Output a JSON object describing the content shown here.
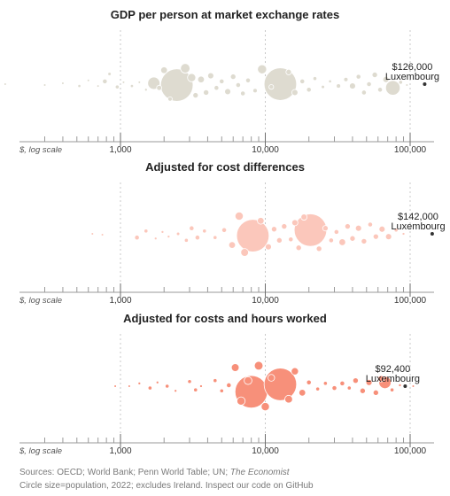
{
  "chart_data": [
    {
      "type": "scatter",
      "title": "GDP per person at market exchange rates",
      "x_scale": "log",
      "axis_prefix_label": "$, log scale",
      "xlim": [
        100,
        160000
      ],
      "xticks": [
        1000,
        10000,
        100000
      ],
      "xtick_labels": [
        "1,000",
        "10,000",
        "100,000"
      ],
      "color": "#dedbd0",
      "annotation": {
        "value_label": "$126,000",
        "country": "Luxembourg",
        "x": 126000
      },
      "points": [
        {
          "x": 160,
          "y": 0,
          "pop": 0.5
        },
        {
          "x": 300,
          "y": 1,
          "pop": 0.3
        },
        {
          "x": 400,
          "y": -1,
          "pop": 0.4
        },
        {
          "x": 520,
          "y": 2,
          "pop": 1.2
        },
        {
          "x": 600,
          "y": -4,
          "pop": 0.6
        },
        {
          "x": 700,
          "y": 2,
          "pop": 0.5
        },
        {
          "x": 780,
          "y": -3,
          "pop": 3.0
        },
        {
          "x": 840,
          "y": -11,
          "pop": 1.5
        },
        {
          "x": 950,
          "y": 3,
          "pop": 2.0
        },
        {
          "x": 1050,
          "y": -2,
          "pop": 0.8
        },
        {
          "x": 1200,
          "y": 2,
          "pop": 1.3
        },
        {
          "x": 1350,
          "y": -2,
          "pop": 0.7
        },
        {
          "x": 1500,
          "y": 6,
          "pop": 1.0
        },
        {
          "x": 1700,
          "y": -1,
          "pop": 20
        },
        {
          "x": 1850,
          "y": 4,
          "pop": 3.5
        },
        {
          "x": 2000,
          "y": -15,
          "pop": 6
        },
        {
          "x": 2200,
          "y": 16,
          "pop": 2.5
        },
        {
          "x": 2450,
          "y": 1,
          "pop": 140
        },
        {
          "x": 2800,
          "y": -17,
          "pop": 12
        },
        {
          "x": 3100,
          "y": -7,
          "pop": 9
        },
        {
          "x": 3300,
          "y": 12,
          "pop": 4
        },
        {
          "x": 3600,
          "y": -5,
          "pop": 6
        },
        {
          "x": 3900,
          "y": 9,
          "pop": 4
        },
        {
          "x": 4200,
          "y": -9,
          "pop": 5
        },
        {
          "x": 4600,
          "y": 4,
          "pop": 3
        },
        {
          "x": 5000,
          "y": -3,
          "pop": 3
        },
        {
          "x": 5500,
          "y": 8,
          "pop": 5
        },
        {
          "x": 6000,
          "y": -8,
          "pop": 4
        },
        {
          "x": 6500,
          "y": 1,
          "pop": 3
        },
        {
          "x": 7000,
          "y": 10,
          "pop": 3
        },
        {
          "x": 7600,
          "y": -4,
          "pop": 3
        },
        {
          "x": 8500,
          "y": 7,
          "pop": 2.5
        },
        {
          "x": 9500,
          "y": -16,
          "pop": 11
        },
        {
          "x": 11000,
          "y": 3,
          "pop": 3
        },
        {
          "x": 12700,
          "y": 0,
          "pop": 140
        },
        {
          "x": 14500,
          "y": -13,
          "pop": 4
        },
        {
          "x": 16000,
          "y": 9,
          "pop": 5
        },
        {
          "x": 18000,
          "y": -3,
          "pop": 3
        },
        {
          "x": 20000,
          "y": 6,
          "pop": 3
        },
        {
          "x": 22000,
          "y": -6,
          "pop": 2
        },
        {
          "x": 25000,
          "y": 3,
          "pop": 1.5
        },
        {
          "x": 28000,
          "y": -3,
          "pop": 1.2
        },
        {
          "x": 32000,
          "y": 2,
          "pop": 2.5
        },
        {
          "x": 36000,
          "y": -5,
          "pop": 2.5
        },
        {
          "x": 40000,
          "y": 2,
          "pop": 5
        },
        {
          "x": 44000,
          "y": -8,
          "pop": 3
        },
        {
          "x": 48000,
          "y": 9,
          "pop": 3
        },
        {
          "x": 52000,
          "y": 0,
          "pop": 3
        },
        {
          "x": 57000,
          "y": -10,
          "pop": 4
        },
        {
          "x": 62000,
          "y": 6,
          "pop": 3
        },
        {
          "x": 68000,
          "y": -5,
          "pop": 5
        },
        {
          "x": 76000,
          "y": 4,
          "pop": 28
        },
        {
          "x": 86000,
          "y": -2,
          "pop": 2
        },
        {
          "x": 95000,
          "y": 1,
          "pop": 0.5
        },
        {
          "x": 126000,
          "y": 0,
          "pop": 0.65,
          "highlight": true
        }
      ]
    },
    {
      "type": "scatter",
      "title": "Adjusted for cost differences",
      "x_scale": "log",
      "axis_prefix_label": "$, log scale",
      "xlim": [
        100,
        160000
      ],
      "xticks": [
        1000,
        10000,
        100000
      ],
      "xtick_labels": [
        "1,000",
        "10,000",
        "100,000"
      ],
      "color": "#fbc7bb",
      "annotation": {
        "value_label": "$142,000",
        "country": "Luxembourg",
        "x": 142000
      },
      "points": [
        {
          "x": 640,
          "y": 0,
          "pop": 0.6
        },
        {
          "x": 750,
          "y": 1,
          "pop": 0.4
        },
        {
          "x": 1300,
          "y": 4,
          "pop": 3
        },
        {
          "x": 1500,
          "y": -3,
          "pop": 2
        },
        {
          "x": 1750,
          "y": 5,
          "pop": 1
        },
        {
          "x": 1950,
          "y": -2,
          "pop": 1
        },
        {
          "x": 2150,
          "y": 3,
          "pop": 1
        },
        {
          "x": 2500,
          "y": 0,
          "pop": 1.5
        },
        {
          "x": 2850,
          "y": 7,
          "pop": 2
        },
        {
          "x": 3100,
          "y": -6,
          "pop": 3
        },
        {
          "x": 3400,
          "y": 4,
          "pop": 3
        },
        {
          "x": 3800,
          "y": -3,
          "pop": 2
        },
        {
          "x": 4500,
          "y": 4,
          "pop": 2
        },
        {
          "x": 5200,
          "y": -4,
          "pop": 3
        },
        {
          "x": 5900,
          "y": 12,
          "pop": 6
        },
        {
          "x": 6600,
          "y": -19,
          "pop": 9
        },
        {
          "x": 7200,
          "y": 20,
          "pop": 8
        },
        {
          "x": 8200,
          "y": 2,
          "pop": 140
        },
        {
          "x": 9300,
          "y": -14,
          "pop": 6
        },
        {
          "x": 10500,
          "y": 14,
          "pop": 5
        },
        {
          "x": 11500,
          "y": -5,
          "pop": 4
        },
        {
          "x": 12500,
          "y": 7,
          "pop": 4
        },
        {
          "x": 13500,
          "y": -8,
          "pop": 4
        },
        {
          "x": 15000,
          "y": 6,
          "pop": 3
        },
        {
          "x": 16000,
          "y": -12,
          "pop": 5
        },
        {
          "x": 17000,
          "y": 15,
          "pop": 4
        },
        {
          "x": 18500,
          "y": -18,
          "pop": 5
        },
        {
          "x": 20500,
          "y": -4,
          "pop": 140
        },
        {
          "x": 23500,
          "y": 16,
          "pop": 4
        },
        {
          "x": 26000,
          "y": -6,
          "pop": 4
        },
        {
          "x": 28500,
          "y": 7,
          "pop": 3
        },
        {
          "x": 31000,
          "y": -2,
          "pop": 3
        },
        {
          "x": 34000,
          "y": 9,
          "pop": 6
        },
        {
          "x": 37000,
          "y": -8,
          "pop": 4
        },
        {
          "x": 40000,
          "y": 5,
          "pop": 4
        },
        {
          "x": 44000,
          "y": -6,
          "pop": 5
        },
        {
          "x": 48000,
          "y": 8,
          "pop": 4
        },
        {
          "x": 53000,
          "y": -10,
          "pop": 3
        },
        {
          "x": 58000,
          "y": 3,
          "pop": 4
        },
        {
          "x": 64000,
          "y": -5,
          "pop": 5
        },
        {
          "x": 71000,
          "y": 3,
          "pop": 5
        },
        {
          "x": 80000,
          "y": -4,
          "pop": 2
        },
        {
          "x": 90000,
          "y": 0,
          "pop": 1
        },
        {
          "x": 142000,
          "y": 0,
          "pop": 0.65,
          "highlight": true
        }
      ]
    },
    {
      "type": "scatter",
      "title": "Adjusted for costs and hours worked",
      "x_scale": "log",
      "axis_prefix_label": "$, log scale",
      "xlim": [
        100,
        160000
      ],
      "xticks": [
        1000,
        10000,
        100000
      ],
      "xtick_labels": [
        "1,000",
        "10,000",
        "100,000"
      ],
      "color": "#f7907a",
      "annotation": {
        "value_label": "$92,400",
        "country": "Luxembourg",
        "x": 92400
      },
      "points": [
        {
          "x": 920,
          "y": 0,
          "pop": 0.6
        },
        {
          "x": 1150,
          "y": 0,
          "pop": 0.4
        },
        {
          "x": 1350,
          "y": -3,
          "pop": 1
        },
        {
          "x": 1600,
          "y": 2,
          "pop": 2
        },
        {
          "x": 1800,
          "y": -4,
          "pop": 1
        },
        {
          "x": 2100,
          "y": 0,
          "pop": 2
        },
        {
          "x": 2400,
          "y": 5,
          "pop": 1
        },
        {
          "x": 3000,
          "y": -5,
          "pop": 2
        },
        {
          "x": 3300,
          "y": 4,
          "pop": 2
        },
        {
          "x": 3600,
          "y": 0,
          "pop": 1
        },
        {
          "x": 4500,
          "y": -6,
          "pop": 2
        },
        {
          "x": 5000,
          "y": 5,
          "pop": 2
        },
        {
          "x": 5600,
          "y": -1,
          "pop": 3
        },
        {
          "x": 6200,
          "y": -20,
          "pop": 8
        },
        {
          "x": 6800,
          "y": 16,
          "pop": 9
        },
        {
          "x": 7600,
          "y": -6,
          "pop": 8
        },
        {
          "x": 8000,
          "y": 6,
          "pop": 140
        },
        {
          "x": 9000,
          "y": -22,
          "pop": 10
        },
        {
          "x": 10000,
          "y": 22,
          "pop": 9
        },
        {
          "x": 11000,
          "y": -9,
          "pop": 6
        },
        {
          "x": 12700,
          "y": -2,
          "pop": 140
        },
        {
          "x": 14500,
          "y": 14,
          "pop": 8
        },
        {
          "x": 16000,
          "y": -16,
          "pop": 7
        },
        {
          "x": 18000,
          "y": 7,
          "pop": 6
        },
        {
          "x": 20000,
          "y": -4,
          "pop": 3
        },
        {
          "x": 23000,
          "y": 3,
          "pop": 2
        },
        {
          "x": 26000,
          "y": -3,
          "pop": 2
        },
        {
          "x": 30000,
          "y": 2,
          "pop": 3
        },
        {
          "x": 34000,
          "y": -3,
          "pop": 3
        },
        {
          "x": 38000,
          "y": 2,
          "pop": 2
        },
        {
          "x": 42000,
          "y": -6,
          "pop": 4
        },
        {
          "x": 47000,
          "y": 5,
          "pop": 4
        },
        {
          "x": 52000,
          "y": -4,
          "pop": 5
        },
        {
          "x": 58000,
          "y": 7,
          "pop": 4
        },
        {
          "x": 63000,
          "y": -8,
          "pop": 5
        },
        {
          "x": 67000,
          "y": -4,
          "pop": 20
        },
        {
          "x": 75000,
          "y": 4,
          "pop": 2
        },
        {
          "x": 85000,
          "y": -1,
          "pop": 1
        },
        {
          "x": 92400,
          "y": 0,
          "pop": 0.65,
          "highlight": true
        },
        {
          "x": 105000,
          "y": 0,
          "pop": 0.4
        }
      ]
    }
  ],
  "footnote": {
    "sources_prefix": "Sources: OECD; World Bank; Penn World Table; UN; ",
    "sources_italic": "The Economist",
    "note": "Circle size=population, 2022; excludes Ireland. Inspect our code on GitHub"
  },
  "colors": {
    "highlight_point": "#333333",
    "axis": "#9a9a9a"
  }
}
